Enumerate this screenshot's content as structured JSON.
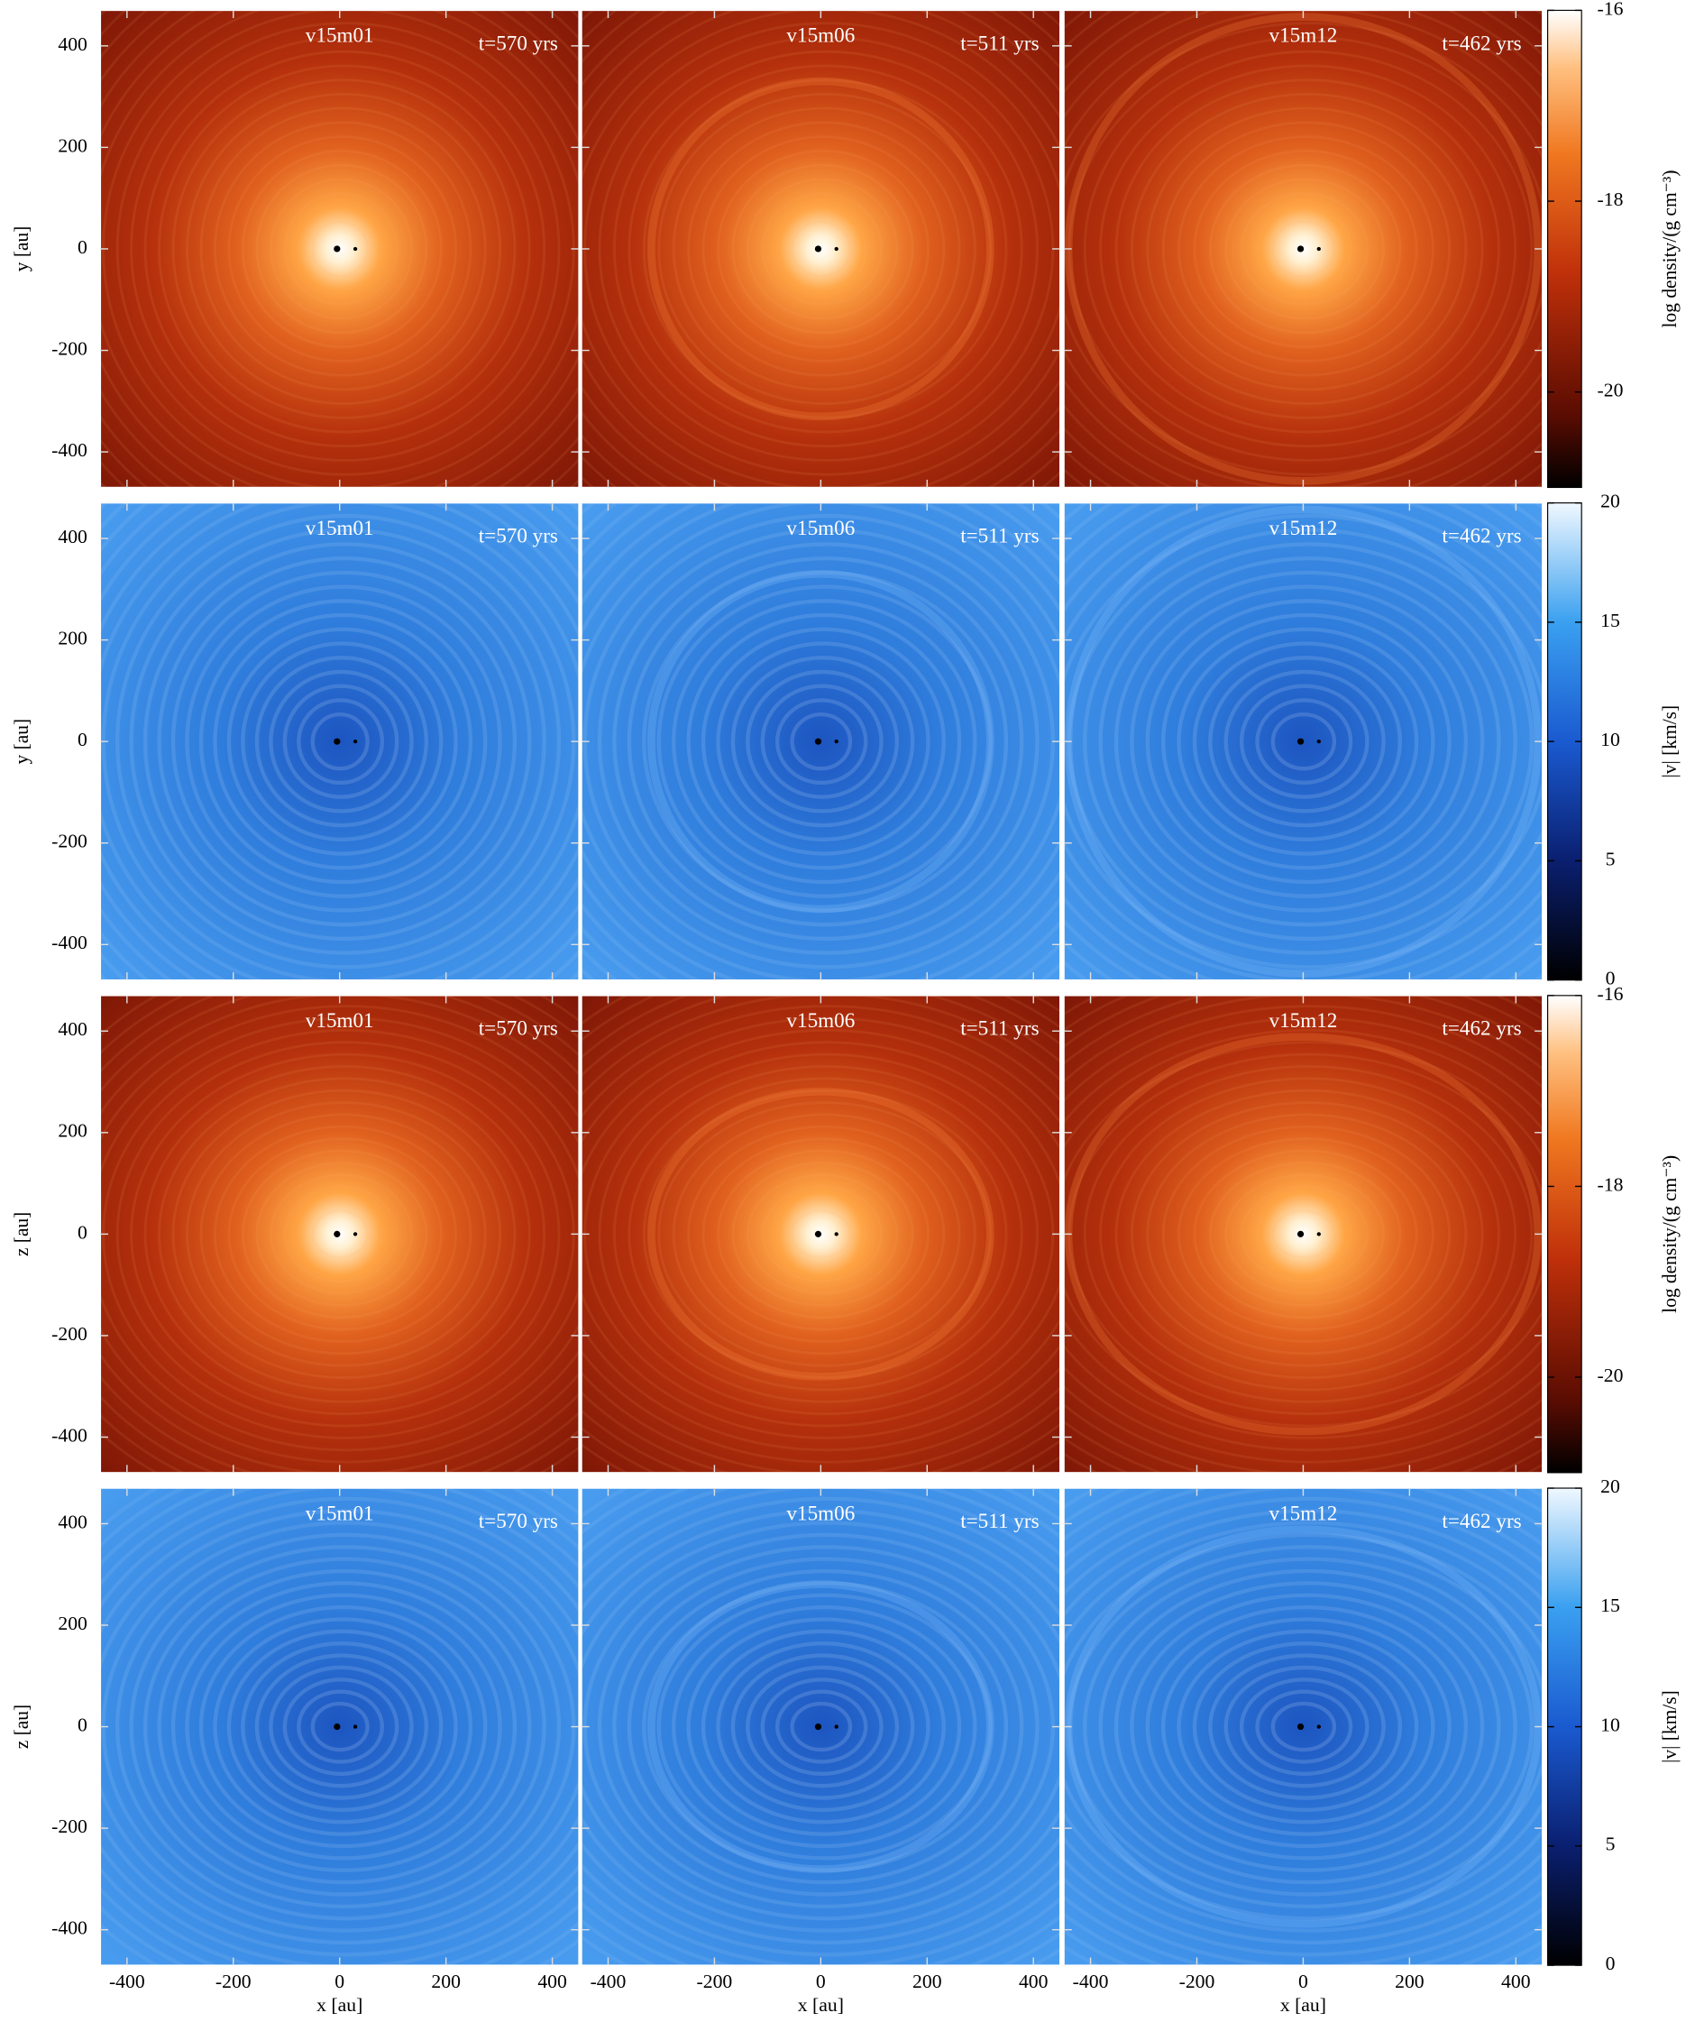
{
  "figure": {
    "models": [
      "v15m01",
      "v15m06",
      "v15m12"
    ],
    "times": [
      "t=570 yrs",
      "t=511 yrs",
      "t=462 yrs"
    ],
    "xlabel": "x [au]",
    "xlim": [
      -450,
      450
    ],
    "xticks": [
      -400,
      -200,
      0,
      200,
      400
    ],
    "ylim": [
      -470,
      470
    ],
    "yticks": [
      -400,
      -200,
      0,
      200,
      400
    ],
    "rows": [
      {
        "ylabel": "y [au]",
        "colormap": "red",
        "colorbar": {
          "label": "log density/(g cm⁻³)",
          "lim": [
            -21,
            -16
          ],
          "ticks": [
            -20,
            -18,
            -16
          ]
        }
      },
      {
        "ylabel": "y [au]",
        "colormap": "blue",
        "colorbar": {
          "label": "|v| [km/s]",
          "lim": [
            0,
            20
          ],
          "ticks": [
            0,
            5,
            10,
            15,
            20
          ]
        }
      },
      {
        "ylabel": "z [au]",
        "colormap": "red",
        "colorbar": {
          "label": "log density/(g cm⁻³)",
          "lim": [
            -21,
            -16
          ],
          "ticks": [
            -20,
            -18,
            -16
          ]
        }
      },
      {
        "ylabel": "z [au]",
        "colormap": "blue",
        "colorbar": {
          "label": "|v| [km/s]",
          "lim": [
            0,
            20
          ],
          "ticks": [
            0,
            5,
            10,
            15,
            20
          ]
        }
      }
    ]
  }
}
